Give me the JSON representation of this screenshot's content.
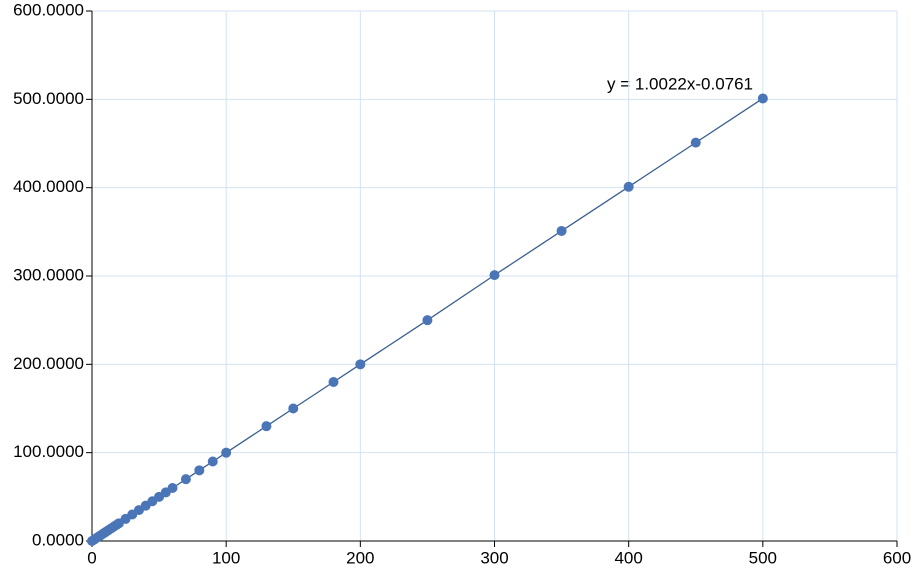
{
  "chart_data": {
    "type": "scatter",
    "annotation": "y = 1.0022x-0.0761",
    "series": [
      {
        "color": "#4a76b8",
        "x": [
          0,
          2,
          4,
          6,
          8,
          10,
          12,
          14,
          16,
          18,
          20,
          25,
          30,
          35,
          40,
          45,
          50,
          55,
          60,
          70,
          80,
          90,
          100,
          130,
          150,
          180,
          200,
          250,
          300,
          350,
          400,
          450,
          500
        ],
        "values": [
          0,
          2,
          4,
          6,
          8,
          10,
          12,
          14,
          16,
          18,
          20,
          25,
          30,
          35,
          40,
          45,
          50,
          55,
          60,
          70,
          80,
          90,
          100,
          130,
          150,
          180,
          200,
          250,
          301,
          351,
          401,
          451,
          501
        ]
      }
    ],
    "xlim": [
      0,
      600
    ],
    "xticks": [
      0,
      100,
      200,
      300,
      400,
      500,
      600
    ],
    "ylim": [
      0,
      600
    ],
    "yticks": [
      {
        "value": 0,
        "label": "0.0000"
      },
      {
        "value": 100,
        "label": "100.0000"
      },
      {
        "value": 200,
        "label": "200.0000"
      },
      {
        "value": 300,
        "label": "300.0000"
      },
      {
        "value": 400,
        "label": "400.0000"
      },
      {
        "value": 500,
        "label": "500.0000"
      },
      {
        "value": 600,
        "label": "600.0000"
      }
    ],
    "grid": true
  }
}
